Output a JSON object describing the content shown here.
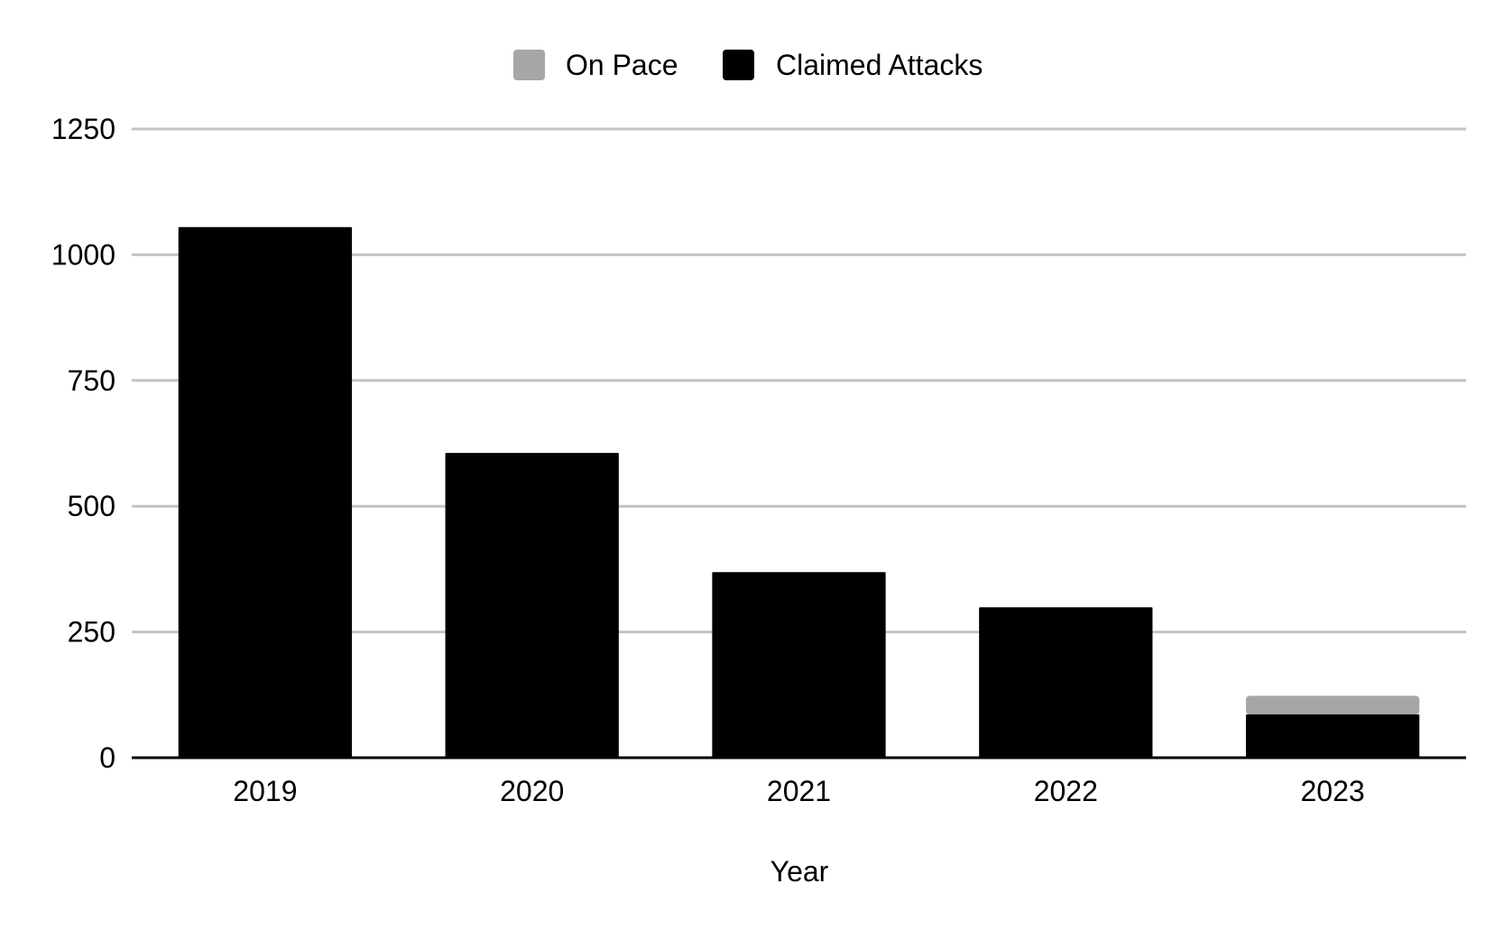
{
  "chart_data": {
    "type": "bar",
    "stacked": true,
    "categories": [
      "2019",
      "2020",
      "2021",
      "2022",
      "2023"
    ],
    "series": [
      {
        "name": "Claimed Attacks",
        "color": "#000000",
        "values": [
          1055,
          606,
          369,
          299,
          86
        ]
      },
      {
        "name": "On Pace",
        "color": "#a6a6a6",
        "values": [
          0,
          0,
          0,
          0,
          37
        ]
      }
    ],
    "xlabel": "Year",
    "ylabel": "",
    "ylim": [
      0,
      1250
    ],
    "yticks": [
      0,
      250,
      500,
      750,
      1000,
      1250
    ],
    "grid": true,
    "legend": {
      "position": "top-center",
      "order": [
        "On Pace",
        "Claimed Attacks"
      ]
    }
  }
}
